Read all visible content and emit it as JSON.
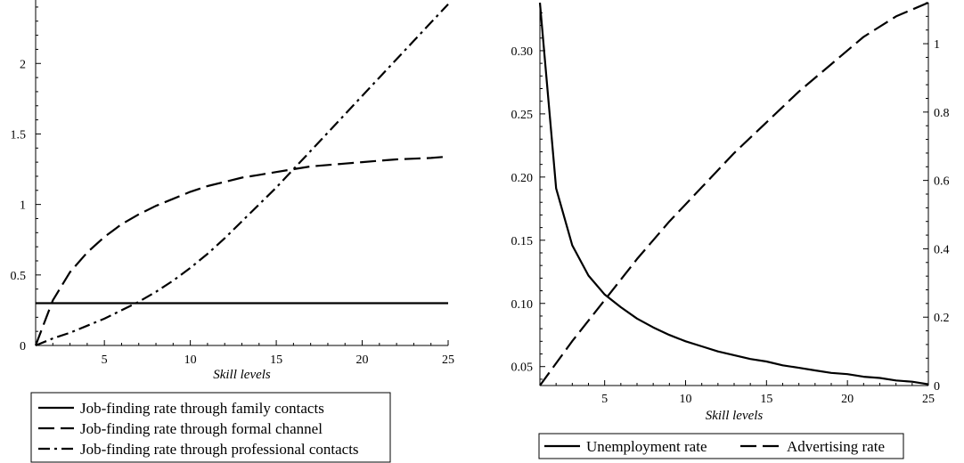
{
  "chart_data": [
    {
      "type": "line",
      "xlabel": "Skill levels",
      "xlim": [
        1,
        25
      ],
      "ylim": [
        0,
        2.45
      ],
      "x_ticks": [
        5,
        10,
        15,
        20,
        25
      ],
      "y_ticks": [
        0,
        0.5,
        1,
        1.5,
        2
      ],
      "y_tick_labels": [
        "0",
        "0.5",
        "1",
        "1.5",
        "2"
      ],
      "grid": false,
      "legend_position": "below",
      "legend": [
        {
          "label": "Job-finding rate through family contacts",
          "style": "solid"
        },
        {
          "label": "Job-finding rate through formal channel",
          "style": "dashed"
        },
        {
          "label": "Job-finding rate through  professional contacts",
          "style": "dashdot"
        }
      ],
      "series": [
        {
          "name": "Job-finding rate through family contacts",
          "style": "solid",
          "x": [
            1,
            25
          ],
          "y": [
            0.3,
            0.3
          ]
        },
        {
          "name": "Job-finding rate through formal channel",
          "style": "dashed",
          "x": [
            1,
            2,
            3,
            4,
            5,
            6,
            7,
            8,
            9,
            10,
            11,
            12,
            13,
            14,
            15,
            16,
            17,
            18,
            19,
            20,
            21,
            22,
            23,
            24,
            25
          ],
          "y": [
            0,
            0.32,
            0.52,
            0.66,
            0.77,
            0.86,
            0.93,
            0.99,
            1.04,
            1.09,
            1.13,
            1.16,
            1.19,
            1.21,
            1.23,
            1.25,
            1.27,
            1.28,
            1.29,
            1.3,
            1.31,
            1.32,
            1.325,
            1.33,
            1.34
          ]
        },
        {
          "name": "Job-finding rate through  professional contacts",
          "style": "dashdot",
          "x": [
            1,
            2,
            3,
            4,
            5,
            6,
            7,
            8,
            9,
            10,
            11,
            12,
            13,
            14,
            15,
            16,
            17,
            18,
            19,
            20,
            21,
            22,
            23,
            24,
            25
          ],
          "y": [
            0,
            0.05,
            0.09,
            0.14,
            0.19,
            0.25,
            0.31,
            0.38,
            0.46,
            0.55,
            0.65,
            0.76,
            0.88,
            1.0,
            1.12,
            1.25,
            1.38,
            1.51,
            1.64,
            1.77,
            1.9,
            2.03,
            2.16,
            2.29,
            2.42
          ]
        }
      ]
    },
    {
      "type": "line",
      "xlabel": "Skill levels",
      "xlim": [
        1,
        25
      ],
      "ylim": [
        0.035,
        0.338
      ],
      "y2lim": [
        0,
        1.12
      ],
      "x_ticks": [
        5,
        10,
        15,
        20,
        25
      ],
      "y_ticks": [
        0.05,
        0.1,
        0.15,
        0.2,
        0.25,
        0.3
      ],
      "y_tick_labels": [
        "0.05",
        "0.10",
        "0.15",
        "0.20",
        "0.25",
        "0.30"
      ],
      "y2_ticks": [
        0,
        0.2,
        0.4,
        0.6,
        0.8,
        1
      ],
      "y2_tick_labels": [
        "0",
        "0.2",
        "0.4",
        "0.6",
        "0.8",
        "1"
      ],
      "grid": false,
      "legend_position": "below",
      "legend": [
        {
          "label": "Unemployment rate",
          "style": "solid"
        },
        {
          "label": "Advertising rate",
          "style": "dashed"
        }
      ],
      "series": [
        {
          "name": "Unemployment rate",
          "style": "solid",
          "axis": "left",
          "x": [
            1,
            2,
            3,
            4,
            5,
            6,
            7,
            8,
            9,
            10,
            11,
            12,
            13,
            14,
            15,
            16,
            17,
            18,
            19,
            20,
            21,
            22,
            23,
            24,
            25
          ],
          "y": [
            0.338,
            0.191,
            0.146,
            0.122,
            0.107,
            0.097,
            0.088,
            0.081,
            0.075,
            0.07,
            0.066,
            0.062,
            0.059,
            0.056,
            0.054,
            0.051,
            0.049,
            0.047,
            0.045,
            0.044,
            0.042,
            0.041,
            0.039,
            0.038,
            0.036
          ]
        },
        {
          "name": "Advertising rate",
          "style": "dashed",
          "axis": "right",
          "x": [
            1,
            3,
            5,
            7,
            9,
            11,
            13,
            15,
            17,
            19,
            21,
            23,
            25
          ],
          "y": [
            0,
            0.13,
            0.25,
            0.37,
            0.48,
            0.58,
            0.68,
            0.77,
            0.86,
            0.94,
            1.02,
            1.08,
            1.12
          ]
        }
      ]
    }
  ]
}
